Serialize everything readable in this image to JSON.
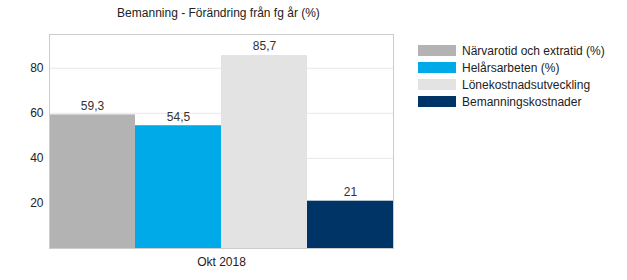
{
  "chart_data": {
    "type": "bar",
    "title": "Bemanning - Förändring från fg år (%)",
    "categories": [
      "Okt 2018"
    ],
    "series": [
      {
        "name": "Närvarotid och extratid (%)",
        "color": "#b3b3b3",
        "values": [
          59.3
        ],
        "value_labels": [
          "59,3"
        ]
      },
      {
        "name": "Helårsarbeten (%)",
        "color": "#00a9e8",
        "values": [
          54.5
        ],
        "value_labels": [
          "54,5"
        ]
      },
      {
        "name": "Lönekostnadsutveckling",
        "color": "#e3e3e3",
        "values": [
          85.7
        ],
        "value_labels": [
          "85,7"
        ]
      },
      {
        "name": "Bemanningskostnader",
        "color": "#003366",
        "values": [
          21
        ],
        "value_labels": [
          "21"
        ]
      }
    ],
    "ylim": [
      0,
      95
    ],
    "yticks": [
      20,
      40,
      60,
      80
    ],
    "grid": true,
    "data_labels": true,
    "legend": "right"
  }
}
